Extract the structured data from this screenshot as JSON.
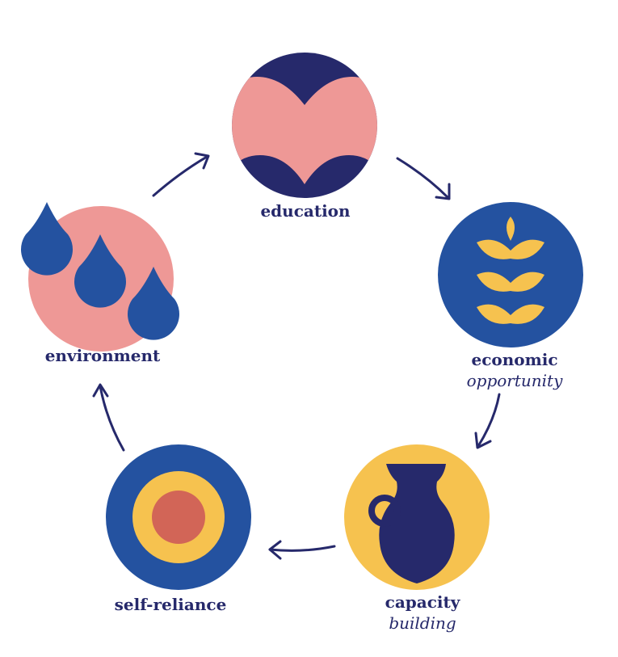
{
  "colors": {
    "navy": "#26296b",
    "blue": "#2452a0",
    "pink": "#ee9896",
    "yellow": "#f6c24f",
    "coral": "#d26557"
  },
  "nodes": {
    "education": {
      "label": "education",
      "icon": "open-book-icon"
    },
    "economic": {
      "label": "economic",
      "label_italic": "opportunity",
      "icon": "wheat-icon"
    },
    "capacity": {
      "label": "capacity",
      "label_italic": "building",
      "icon": "jug-icon"
    },
    "self_reliance": {
      "label": "self-reliance",
      "icon": "target-icon"
    },
    "environment": {
      "label": "environment",
      "icon": "water-drops-icon"
    }
  }
}
